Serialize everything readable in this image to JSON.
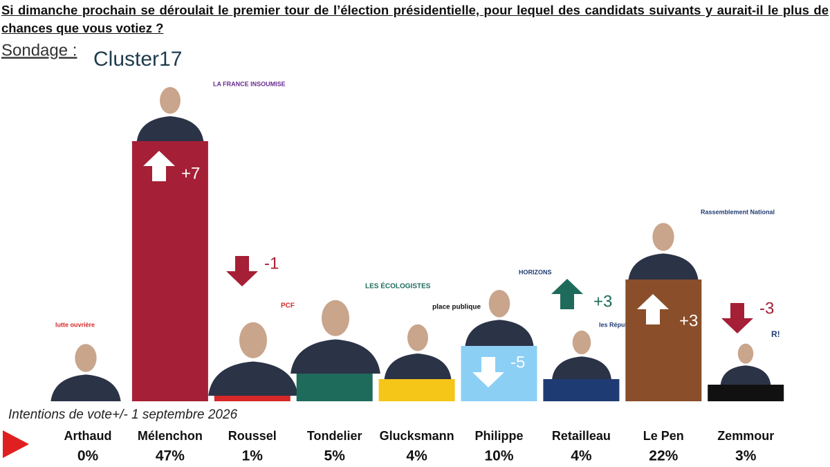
{
  "chart_data": {
    "type": "bar",
    "title": "Si dimanche prochain se déroulait le premier tour de l’élection présidentielle, pour lequel des candidats suivants y aurait-il le plus de chances que vous votiez ?",
    "source_label": "Sondage :",
    "source": "Cluster17",
    "note": "Intentions de vote+/- 1 septembre 2026",
    "categories": [
      "Arthaud",
      "Mélenchon",
      "Roussel",
      "Tondelier",
      "Glucksmann",
      "Philippe",
      "Retailleau",
      "Le Pen",
      "Zemmour"
    ],
    "values": [
      0,
      47,
      1,
      5,
      4,
      10,
      4,
      22,
      3
    ],
    "value_labels": [
      "0%",
      "47%",
      "1%",
      "5%",
      "4%",
      "10%",
      "4%",
      "22%",
      "3%"
    ],
    "colors": [
      "#ffffff",
      "#a51f36",
      "#d62828",
      "#1e6b5c",
      "#f5c518",
      "#8ccff5",
      "#1f3b73",
      "#8a4e2a",
      "#111111"
    ],
    "changes": {
      "values": [
        null,
        7,
        -1,
        null,
        null,
        -5,
        3,
        3,
        -3
      ],
      "value_labels": [
        null,
        "+7",
        "-1",
        null,
        null,
        "-5",
        "+3",
        "+3",
        "-3"
      ]
    },
    "party_logos": [
      "lutte ouvrière",
      "LA FRANCE INSOUMISE",
      "PCF",
      "LES ÉCOLOGISTES",
      "place publique",
      "HORIZONS",
      "les Républicains",
      "Rassemblement National",
      "R!"
    ]
  }
}
